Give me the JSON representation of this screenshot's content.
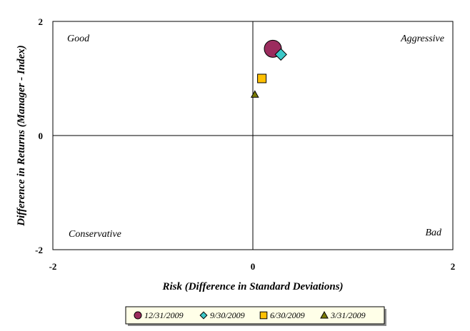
{
  "chart_data": {
    "type": "scatter",
    "title": "",
    "xlabel": "Risk (Difference in Standard Deviations)",
    "ylabel": "Difference in Returns (Manager - Index)",
    "xlim": [
      -2,
      2
    ],
    "ylim": [
      -2,
      2
    ],
    "x_ticks": [
      "-2",
      "0",
      "2"
    ],
    "y_ticks": [
      "2",
      "0",
      "-2"
    ],
    "grid": false,
    "legend_position": "bottom",
    "quadrant_labels": {
      "top_left": "Good",
      "top_right": "Aggressive",
      "bottom_left": "Conservative",
      "bottom_right": "Bad"
    },
    "series": [
      {
        "name": "12/31/2009",
        "marker": "circle-large",
        "color": "#9b2c5e",
        "x": 0.2,
        "y": 1.52
      },
      {
        "name": "9/30/2009",
        "marker": "diamond",
        "color": "#3cc8c8",
        "x": 0.28,
        "y": 1.42
      },
      {
        "name": "6/30/2009",
        "marker": "square",
        "color": "#ffc000",
        "x": 0.09,
        "y": 1.0
      },
      {
        "name": "3/31/2009",
        "marker": "triangle",
        "color": "#7a7a00",
        "x": 0.02,
        "y": 0.72
      }
    ]
  }
}
